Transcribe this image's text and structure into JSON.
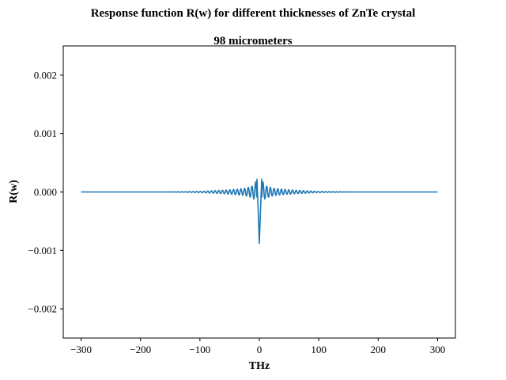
{
  "figure": {
    "suptitle": "Response function R(w) for different thicknesses of ZnTe crystal"
  },
  "chart_data": {
    "type": "line",
    "title": "98 micrometers",
    "xlabel": "THz",
    "ylabel": "R(w)",
    "xlim": [
      -330,
      330
    ],
    "ylim": [
      -0.0025,
      0.0025
    ],
    "x_ticks": [
      -300,
      -200,
      -100,
      0,
      100,
      200,
      300
    ],
    "x_tick_labels": [
      "−300",
      "−200",
      "−100",
      "0",
      "100",
      "200",
      "300"
    ],
    "y_ticks": [
      -0.002,
      -0.001,
      0.0,
      0.001,
      0.002
    ],
    "y_tick_labels": [
      "−0.002",
      "−0.001",
      "0.000",
      "0.001",
      "0.002"
    ],
    "grid": false,
    "series": [
      {
        "color": "#1f77b4",
        "x_range": [
          -300,
          300
        ],
        "points": [
          [
            -300,
            0.0
          ],
          [
            -150,
            0.0
          ],
          [
            -100,
            1e-05
          ],
          [
            -80,
            2e-05
          ],
          [
            -60,
            3e-05
          ],
          [
            -45,
            4e-05
          ],
          [
            -35,
            5e-05
          ],
          [
            -25,
            6e-05
          ],
          [
            -18,
            8e-05
          ],
          [
            -12,
            0.0001
          ],
          [
            -8,
            0.00013
          ],
          [
            -4,
            0.00022
          ],
          [
            -2,
            -0.0003
          ],
          [
            0,
            -0.00088
          ],
          [
            2,
            -0.0003
          ],
          [
            4,
            0.00022
          ],
          [
            8,
            0.00013
          ],
          [
            12,
            0.0001
          ],
          [
            18,
            8e-05
          ],
          [
            25,
            6e-05
          ],
          [
            35,
            5e-05
          ],
          [
            45,
            4e-05
          ],
          [
            60,
            3e-05
          ],
          [
            80,
            2e-05
          ],
          [
            100,
            1e-05
          ],
          [
            150,
            0.0
          ],
          [
            300,
            0.0
          ]
        ]
      }
    ]
  }
}
